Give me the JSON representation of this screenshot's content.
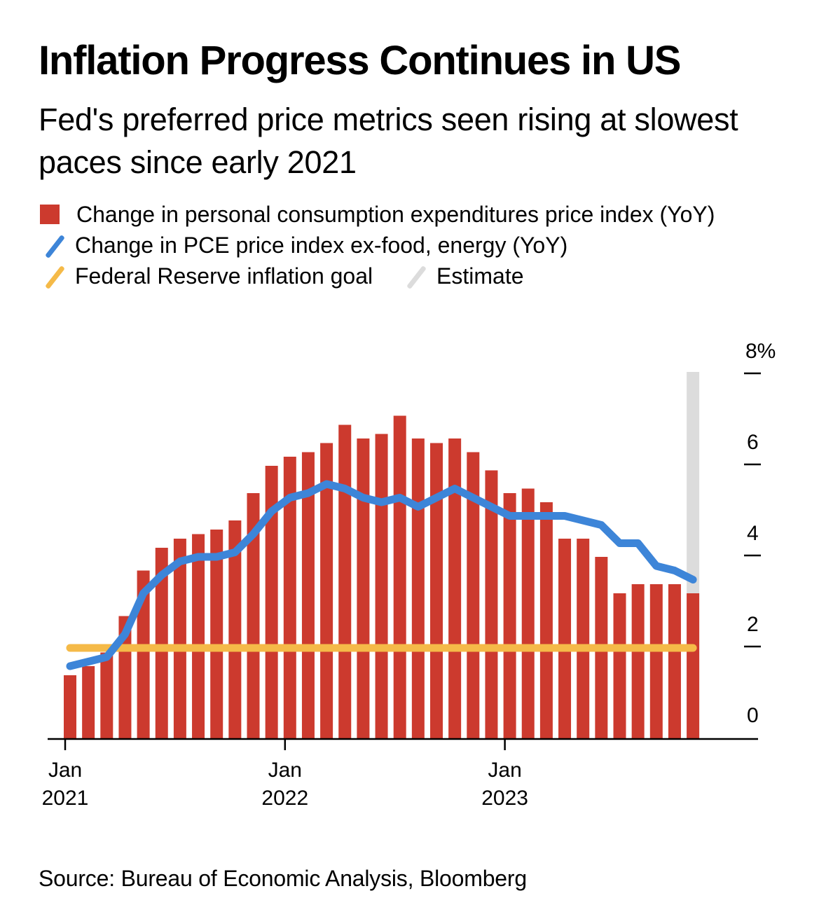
{
  "title": "Inflation Progress Continues in US",
  "subtitle": "Fed's preferred price metrics seen rising at slowest paces since early 2021",
  "legend": [
    {
      "key": "pce",
      "label": "Change in personal consumption expenditures price index (YoY)",
      "shape": "square",
      "color": "#cc3a2e"
    },
    {
      "key": "core",
      "label": "Change in PCE price index ex-food, energy (YoY)",
      "shape": "slash",
      "color": "#3d85d8"
    },
    {
      "key": "goal",
      "label": "Federal Reserve inflation goal",
      "shape": "slash",
      "color": "#f5ba48"
    },
    {
      "key": "estimate",
      "label": "Estimate",
      "shape": "slash",
      "color": "#dcdcdc"
    }
  ],
  "source": "Source: Bureau of Economic Analysis, Bloomberg",
  "chart_data": {
    "type": "bar",
    "title": "Inflation Progress Continues in US",
    "subtitle": "Fed's preferred price metrics seen rising at slowest paces since early 2021",
    "xlabel": "",
    "ylabel": "",
    "ylim": [
      0,
      8
    ],
    "y_ticks": [
      0,
      2,
      4,
      6,
      8
    ],
    "y_tick_labels": [
      "0",
      "2",
      "4",
      "6",
      "8%"
    ],
    "y_axis_side": "right",
    "x_ticks": [
      {
        "category": "Jan 2021",
        "line1": "Jan",
        "line2": "2021"
      },
      {
        "category": "Jan 2022",
        "line1": "Jan",
        "line2": "2022"
      },
      {
        "category": "Jan 2023",
        "line1": "Jan",
        "line2": "2023"
      }
    ],
    "grid": false,
    "legend_position": "top-left",
    "categories": [
      "Jan 2021",
      "Feb 2021",
      "Mar 2021",
      "Apr 2021",
      "May 2021",
      "Jun 2021",
      "Jul 2021",
      "Aug 2021",
      "Sep 2021",
      "Oct 2021",
      "Nov 2021",
      "Dec 2021",
      "Jan 2022",
      "Feb 2022",
      "Mar 2022",
      "Apr 2022",
      "May 2022",
      "Jun 2022",
      "Jul 2022",
      "Aug 2022",
      "Sep 2022",
      "Oct 2022",
      "Nov 2022",
      "Dec 2022",
      "Jan 2023",
      "Feb 2023",
      "Mar 2023",
      "Apr 2023",
      "May 2023",
      "Jun 2023",
      "Jul 2023",
      "Aug 2023",
      "Sep 2023",
      "Oct 2023",
      "Nov 2023"
    ],
    "series": [
      {
        "name": "Change in personal consumption expenditures price index (YoY)",
        "type": "bar",
        "color": "#cc3a2e",
        "values": [
          1.4,
          1.6,
          1.9,
          2.7,
          3.7,
          4.2,
          4.4,
          4.5,
          4.6,
          4.8,
          5.4,
          6.0,
          6.2,
          6.3,
          6.5,
          6.9,
          6.6,
          6.7,
          7.1,
          6.6,
          6.5,
          6.6,
          6.3,
          5.9,
          5.4,
          5.5,
          5.2,
          4.4,
          4.4,
          4.0,
          3.2,
          3.4,
          3.4,
          3.4,
          3.2
        ]
      },
      {
        "name": "Change in PCE price index ex-food, energy (YoY)",
        "type": "line",
        "color": "#3d85d8",
        "values": [
          1.6,
          1.7,
          1.8,
          2.3,
          3.2,
          3.6,
          3.9,
          4.0,
          4.0,
          4.1,
          4.5,
          5.0,
          5.3,
          5.4,
          5.6,
          5.5,
          5.3,
          5.2,
          5.3,
          5.1,
          5.3,
          5.5,
          5.3,
          5.1,
          4.9,
          4.9,
          4.9,
          4.9,
          4.8,
          4.7,
          4.3,
          4.3,
          3.8,
          3.7,
          3.5
        ]
      },
      {
        "name": "Federal Reserve inflation goal",
        "type": "line",
        "color": "#f5ba48",
        "constant": 2.0
      }
    ],
    "estimate": {
      "label": "Estimate",
      "category": "Nov 2023",
      "color": "#dcdcdc"
    }
  }
}
